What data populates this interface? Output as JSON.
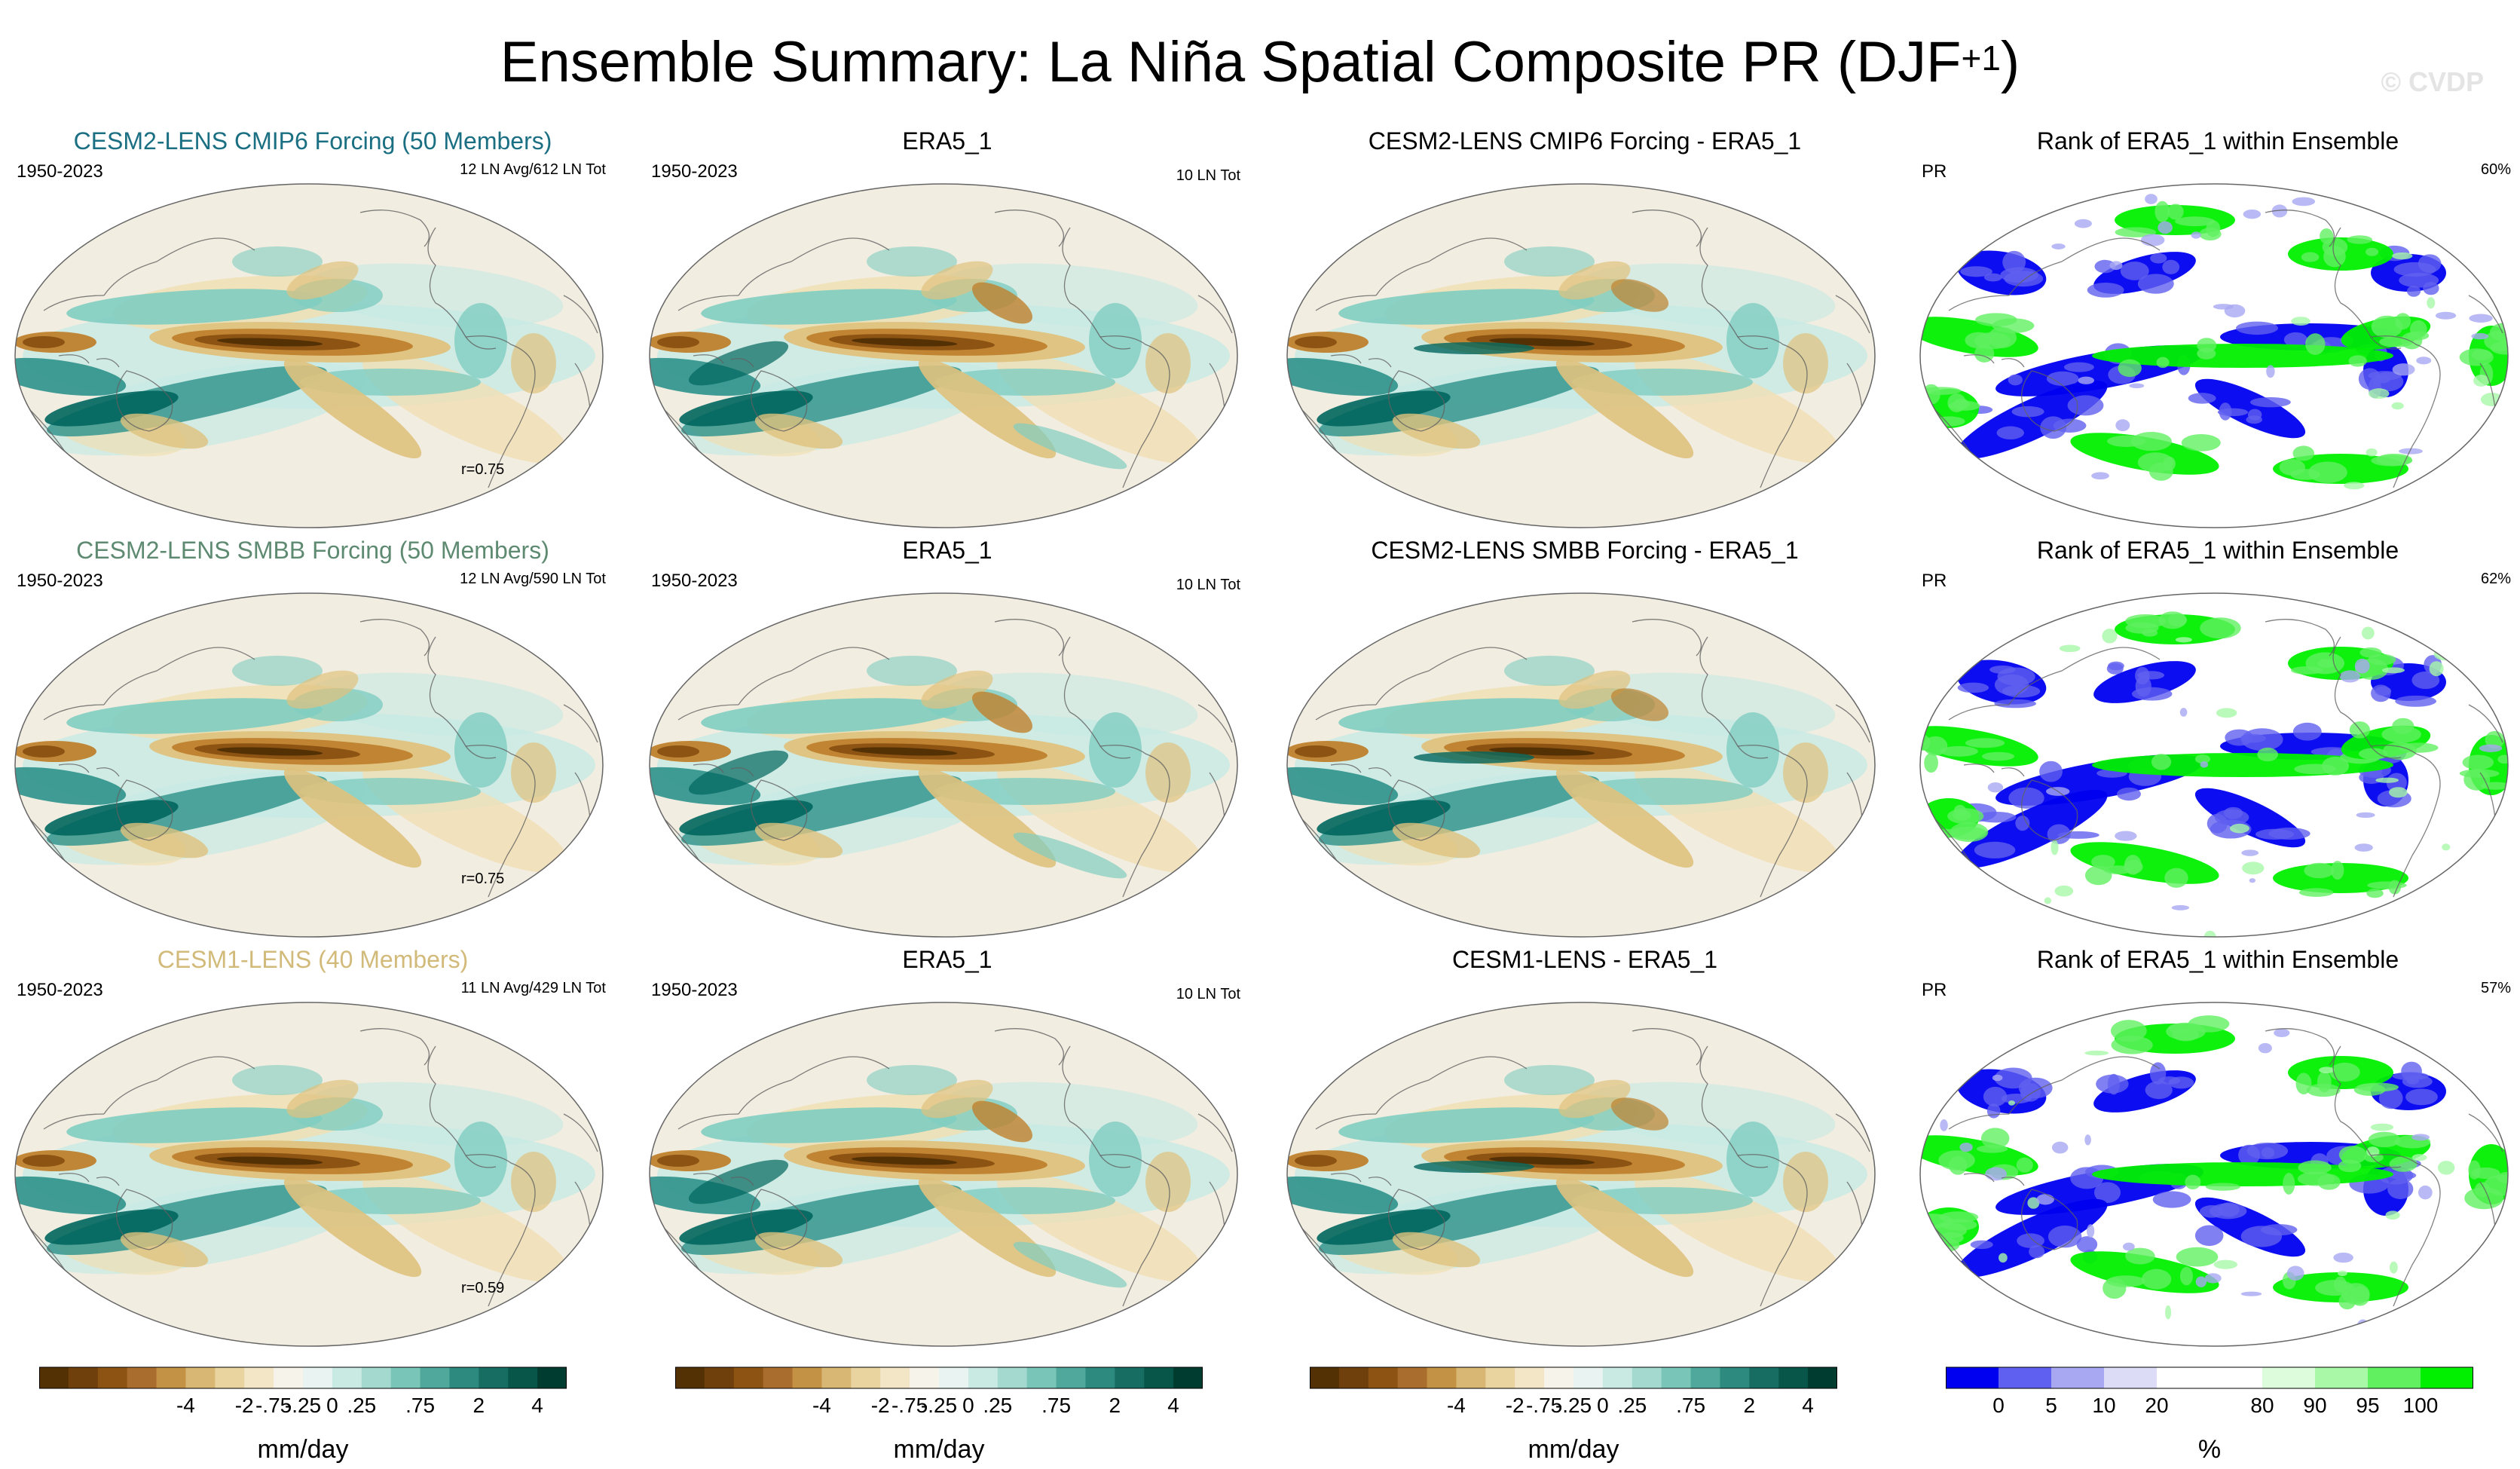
{
  "figure": {
    "title": "Ensemble Summary: La Niña Spatial Composite PR (DJF",
    "title_sup": "+1",
    "title_close": ")",
    "watermark": "© CVDP"
  },
  "colors": {
    "model1": "#1b6f83",
    "model2": "#5f8a72",
    "model3": "#d2ba7a",
    "ocean_bg": "#f2ede1",
    "rank_blue": "#0000f0",
    "rank_green": "#00f000"
  },
  "panels": [
    {
      "row": 0,
      "col": 0,
      "type": "model",
      "title": "CESM2-LENS CMIP6 Forcing (50 Members)",
      "color_key": "model1",
      "top_left": "1950-2023",
      "top_right": "12 LN Avg/612 LN Tot",
      "bottom_right": "r=0.75"
    },
    {
      "row": 0,
      "col": 1,
      "type": "obs",
      "title": "ERA5_1",
      "top_left": "1950-2023",
      "top_right": "10 LN Tot",
      "bottom_right": ""
    },
    {
      "row": 0,
      "col": 2,
      "type": "diff",
      "title": "CESM2-LENS CMIP6 Forcing - ERA5_1",
      "top_left": "",
      "top_right": "",
      "bottom_right": ""
    },
    {
      "row": 0,
      "col": 3,
      "type": "rank",
      "title": "Rank of ERA5_1 within Ensemble",
      "top_left": "PR",
      "top_right": "60%",
      "bottom_right": ""
    },
    {
      "row": 1,
      "col": 0,
      "type": "model",
      "title": "CESM2-LENS SMBB Forcing (50 Members)",
      "color_key": "model2",
      "top_left": "1950-2023",
      "top_right": "12 LN Avg/590 LN Tot",
      "bottom_right": "r=0.75"
    },
    {
      "row": 1,
      "col": 1,
      "type": "obs",
      "title": "ERA5_1",
      "top_left": "1950-2023",
      "top_right": "10 LN Tot",
      "bottom_right": ""
    },
    {
      "row": 1,
      "col": 2,
      "type": "diff",
      "title": "CESM2-LENS SMBB Forcing - ERA5_1",
      "top_left": "",
      "top_right": "",
      "bottom_right": ""
    },
    {
      "row": 1,
      "col": 3,
      "type": "rank",
      "title": "Rank of ERA5_1 within Ensemble",
      "top_left": "PR",
      "top_right": "62%",
      "bottom_right": ""
    },
    {
      "row": 2,
      "col": 0,
      "type": "model",
      "title": "CESM1-LENS (40 Members)",
      "color_key": "model3",
      "top_left": "1950-2023",
      "top_right": "11 LN Avg/429 LN Tot",
      "bottom_right": "r=0.59"
    },
    {
      "row": 2,
      "col": 1,
      "type": "obs",
      "title": "ERA5_1",
      "top_left": "1950-2023",
      "top_right": "10 LN Tot",
      "bottom_right": ""
    },
    {
      "row": 2,
      "col": 2,
      "type": "diff",
      "title": "CESM1-LENS - ERA5_1",
      "top_left": "",
      "top_right": "",
      "bottom_right": ""
    },
    {
      "row": 2,
      "col": 3,
      "type": "rank",
      "title": "Rank of ERA5_1 within Ensemble",
      "top_left": "PR",
      "top_right": "57%",
      "bottom_right": ""
    }
  ],
  "colorbars": {
    "pr": {
      "colors": [
        "#543005",
        "#6f3f0c",
        "#8c5313",
        "#a96d2d",
        "#c49245",
        "#d8b674",
        "#e9d39f",
        "#f3e6c6",
        "#f6f3ea",
        "#e9f4f2",
        "#c9e9e3",
        "#a3d9cf",
        "#79c5b7",
        "#4fa89b",
        "#2c8a7e",
        "#176d62",
        "#08564a",
        "#003c30"
      ],
      "tick_labels": [
        "-4",
        "-2",
        "-.75",
        "-.25",
        "0",
        ".25",
        ".75",
        "2",
        "4"
      ],
      "unit": "mm/day"
    },
    "rank": {
      "colors": [
        "#0000f0",
        "#6060f0",
        "#a8a8f2",
        "#dcdcf6",
        "#ffffff",
        "#ffffff",
        "#dcfcdc",
        "#a8f8a8",
        "#60f060",
        "#00f000"
      ],
      "tick_labels": [
        "0",
        "5",
        "10",
        "20",
        "80",
        "90",
        "95",
        "100"
      ],
      "unit": "%"
    }
  }
}
